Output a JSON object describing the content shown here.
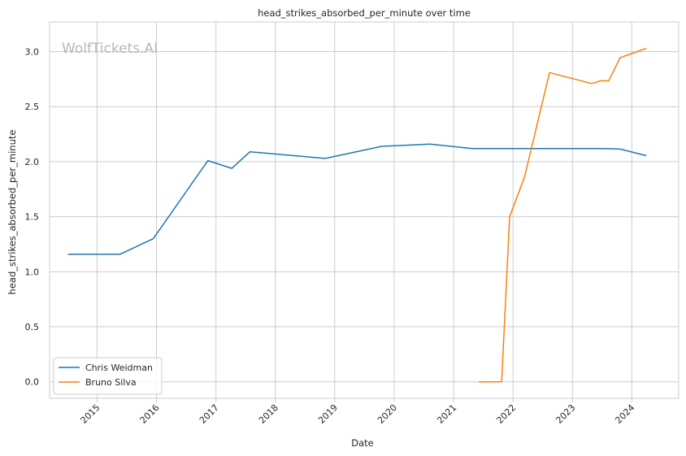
{
  "chart_data": {
    "type": "line",
    "title": "head_strikes_absorbed_per_minute over time",
    "xlabel": "Date",
    "ylabel": "head_strikes_absorbed_per_minute",
    "watermark": "WolfTickets.AI",
    "x_axis_type": "date",
    "xlim": [
      "2014-03-15",
      "2024-10-15"
    ],
    "ylim": [
      -0.15,
      3.27
    ],
    "x_ticks": [
      "2015",
      "2016",
      "2017",
      "2018",
      "2019",
      "2020",
      "2021",
      "2022",
      "2023",
      "2024"
    ],
    "y_ticks": [
      "0.0",
      "0.5",
      "1.0",
      "1.5",
      "2.0",
      "2.5",
      "3.0"
    ],
    "y_tick_values": [
      0.0,
      0.5,
      1.0,
      1.5,
      2.0,
      2.5,
      3.0
    ],
    "grid": true,
    "legend_position": "lower-left",
    "series": [
      {
        "name": "Chris Weidman",
        "color": "#1f77b4",
        "points": [
          {
            "x": "2014-07-05",
            "y": 1.16
          },
          {
            "x": "2015-05-23",
            "y": 1.16
          },
          {
            "x": "2015-12-12",
            "y": 1.3
          },
          {
            "x": "2016-11-12",
            "y": 2.01
          },
          {
            "x": "2017-04-08",
            "y": 1.94
          },
          {
            "x": "2017-07-29",
            "y": 2.09
          },
          {
            "x": "2018-11-03",
            "y": 2.03
          },
          {
            "x": "2019-10-18",
            "y": 2.14
          },
          {
            "x": "2020-08-08",
            "y": 2.16
          },
          {
            "x": "2021-04-24",
            "y": 2.12
          },
          {
            "x": "2023-07-08",
            "y": 2.12
          },
          {
            "x": "2023-10-21",
            "y": 2.115
          },
          {
            "x": "2024-03-30",
            "y": 2.055
          }
        ]
      },
      {
        "name": "Bruno Silva",
        "color": "#ff7f0e",
        "points": [
          {
            "x": "2021-06-05",
            "y": 0.0
          },
          {
            "x": "2021-10-23",
            "y": 0.0
          },
          {
            "x": "2021-12-11",
            "y": 1.5
          },
          {
            "x": "2022-03-12",
            "y": 1.86
          },
          {
            "x": "2022-08-13",
            "y": 2.81
          },
          {
            "x": "2023-04-29",
            "y": 2.71
          },
          {
            "x": "2023-06-24",
            "y": 2.735
          },
          {
            "x": "2023-08-12",
            "y": 2.735
          },
          {
            "x": "2023-10-21",
            "y": 2.945
          },
          {
            "x": "2024-03-30",
            "y": 3.03
          }
        ]
      }
    ]
  }
}
